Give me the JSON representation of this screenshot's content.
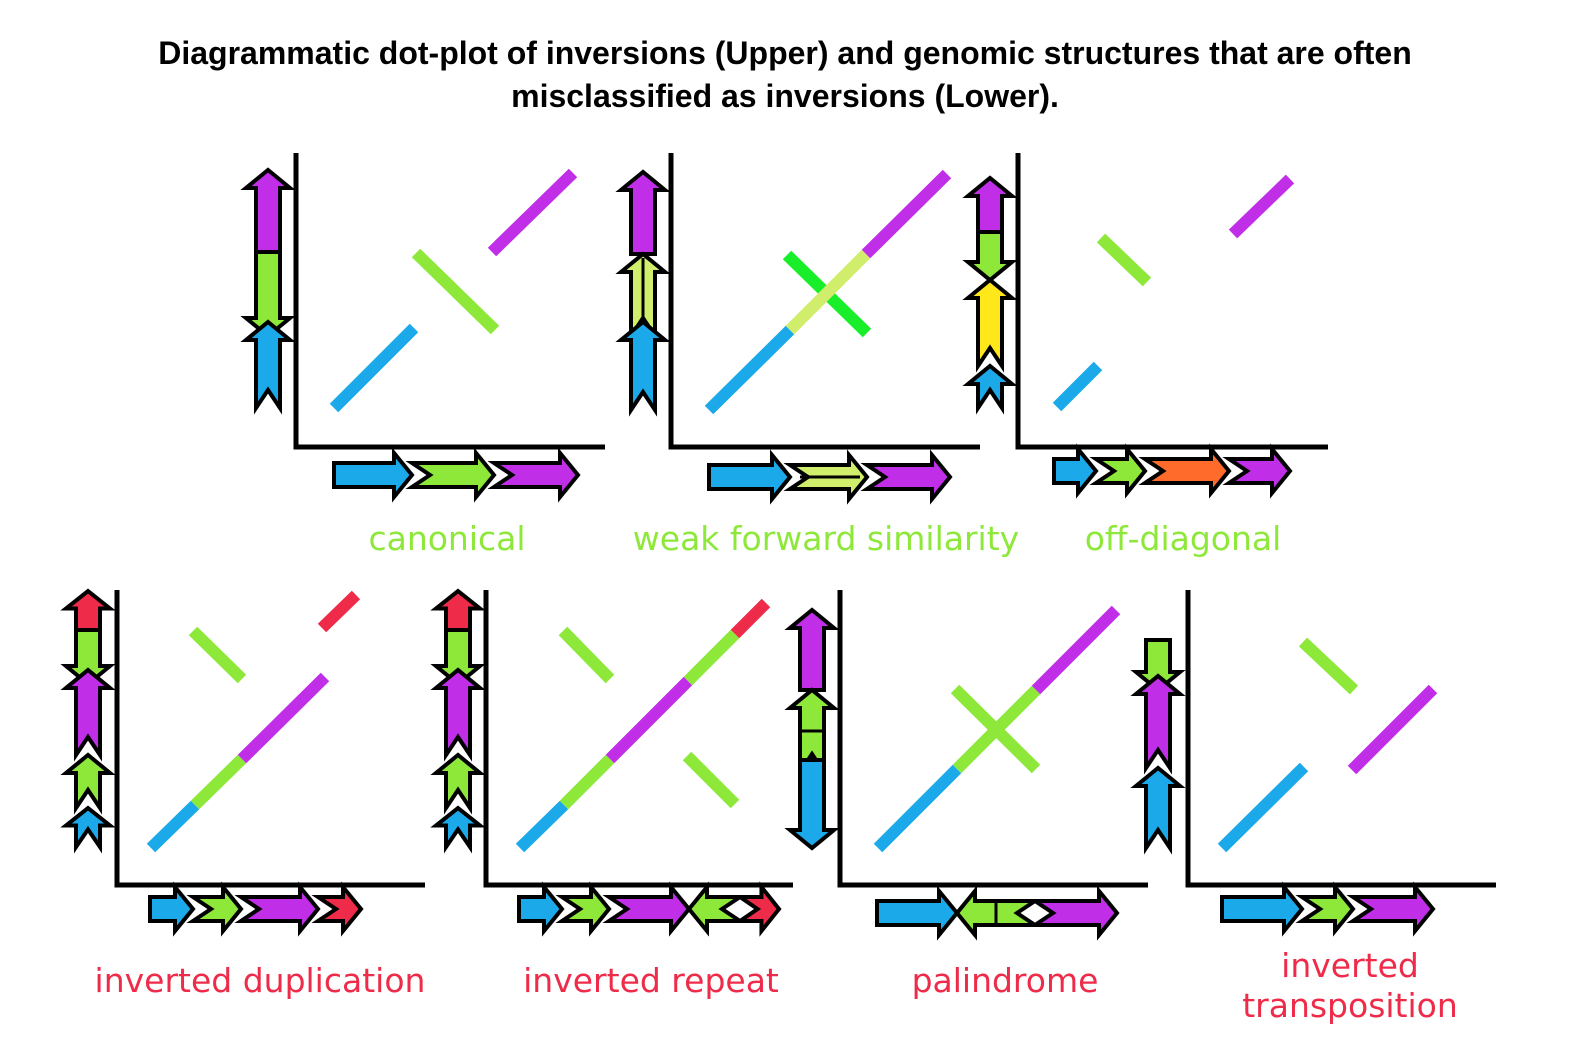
{
  "title": {
    "line1": "Diagrammatic dot-plot of inversions (Upper) and genomic structures that are often",
    "line2": "misclassified as inversions (Lower)."
  },
  "colors": {
    "blue": "#1ba9ea",
    "green": "#8ee83a",
    "purple": "#c02ee8",
    "red": "#ee2c4a",
    "yellow": "#ffe81a",
    "orange": "#ff6b2b",
    "bright_green": "#19ee2a",
    "light_green": "#d0ee6c",
    "upper_label": "#8ee83a",
    "lower_label": "#ee2c4a",
    "axis": "#000000"
  },
  "panels": [
    {
      "id": "canonical",
      "group": "upper",
      "label": [
        "canonical"
      ]
    },
    {
      "id": "weak-forward-similarity",
      "group": "upper",
      "label": [
        "weak forward similarity"
      ]
    },
    {
      "id": "off-diagonal",
      "group": "upper",
      "label": [
        "off-diagonal"
      ]
    },
    {
      "id": "inverted-duplication",
      "group": "lower",
      "label": [
        "inverted duplication"
      ]
    },
    {
      "id": "inverted-repeat",
      "group": "lower",
      "label": [
        "inverted repeat"
      ]
    },
    {
      "id": "palindrome",
      "group": "lower",
      "label": [
        "palindrome"
      ]
    },
    {
      "id": "inverted-transposition",
      "group": "lower",
      "label": [
        "inverted",
        "transposition"
      ]
    }
  ]
}
